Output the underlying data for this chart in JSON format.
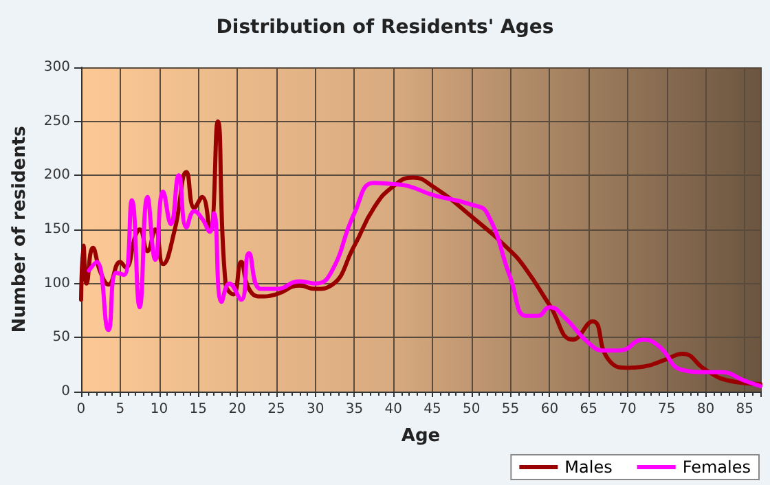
{
  "chart_data": {
    "type": "line",
    "title": "Distribution of Residents' Ages",
    "xlabel": "Age",
    "ylabel": "Number of residents",
    "xlim": [
      0,
      87
    ],
    "xticks": [
      0,
      5,
      10,
      15,
      20,
      25,
      30,
      35,
      40,
      45,
      50,
      55,
      60,
      65,
      70,
      75,
      80,
      85
    ],
    "ylim": [
      0,
      300
    ],
    "yticks": [
      0,
      50,
      100,
      150,
      200,
      250,
      300
    ],
    "grid": true,
    "legend": "bottom right",
    "marker": "none",
    "line_style": "solid",
    "series": [
      {
        "name": "Males",
        "color": "#990000",
        "x": [
          0,
          0.3,
          0.7,
          1.5,
          2.5,
          3.5,
          5,
          5.7,
          7,
          7.5,
          8.5,
          9.5,
          10.5,
          12,
          13.5,
          14.5,
          15.5,
          16.5,
          17.5,
          18.5,
          19.5,
          20.5,
          21.5,
          23,
          25,
          28,
          30,
          32,
          35,
          37.5,
          40,
          42.5,
          45,
          50,
          55,
          57,
          60,
          63,
          65.5,
          67.5,
          70,
          72,
          75,
          77,
          80,
          83,
          87
        ],
        "values": [
          85,
          135,
          100,
          133,
          110,
          99,
          120,
          115,
          145,
          150,
          130,
          150,
          118,
          150,
          203,
          170,
          180,
          148,
          250,
          100,
          90,
          120,
          95,
          88,
          90,
          98,
          95,
          98,
          135,
          170,
          190,
          198,
          190,
          162,
          130,
          113,
          80,
          48,
          65,
          30,
          22,
          23,
          30,
          35,
          20,
          10,
          7
        ]
      },
      {
        "name": "Females",
        "color": "#ff00ff",
        "x": [
          1,
          2,
          3.5,
          4.5,
          5.5,
          6.5,
          7.5,
          8.5,
          9.5,
          10.5,
          11.5,
          12.5,
          13.5,
          14.5,
          15.5,
          16.5,
          17,
          18,
          19,
          20.5,
          21.5,
          23,
          25,
          28,
          30,
          32,
          35,
          37.5,
          40,
          42,
          45,
          50,
          52,
          55,
          57,
          58.5,
          60,
          62,
          65,
          67,
          69,
          72,
          74,
          77,
          80,
          82,
          85,
          87
        ],
        "values": [
          112,
          120,
          57,
          110,
          108,
          177,
          78,
          180,
          122,
          185,
          155,
          200,
          152,
          167,
          160,
          148,
          165,
          83,
          100,
          85,
          128,
          95,
          95,
          102,
          100,
          110,
          165,
          193,
          192,
          190,
          182,
          173,
          165,
          105,
          70,
          70,
          78,
          68,
          45,
          38,
          38,
          48,
          42,
          20,
          18,
          18,
          10,
          5
        ]
      }
    ]
  }
}
